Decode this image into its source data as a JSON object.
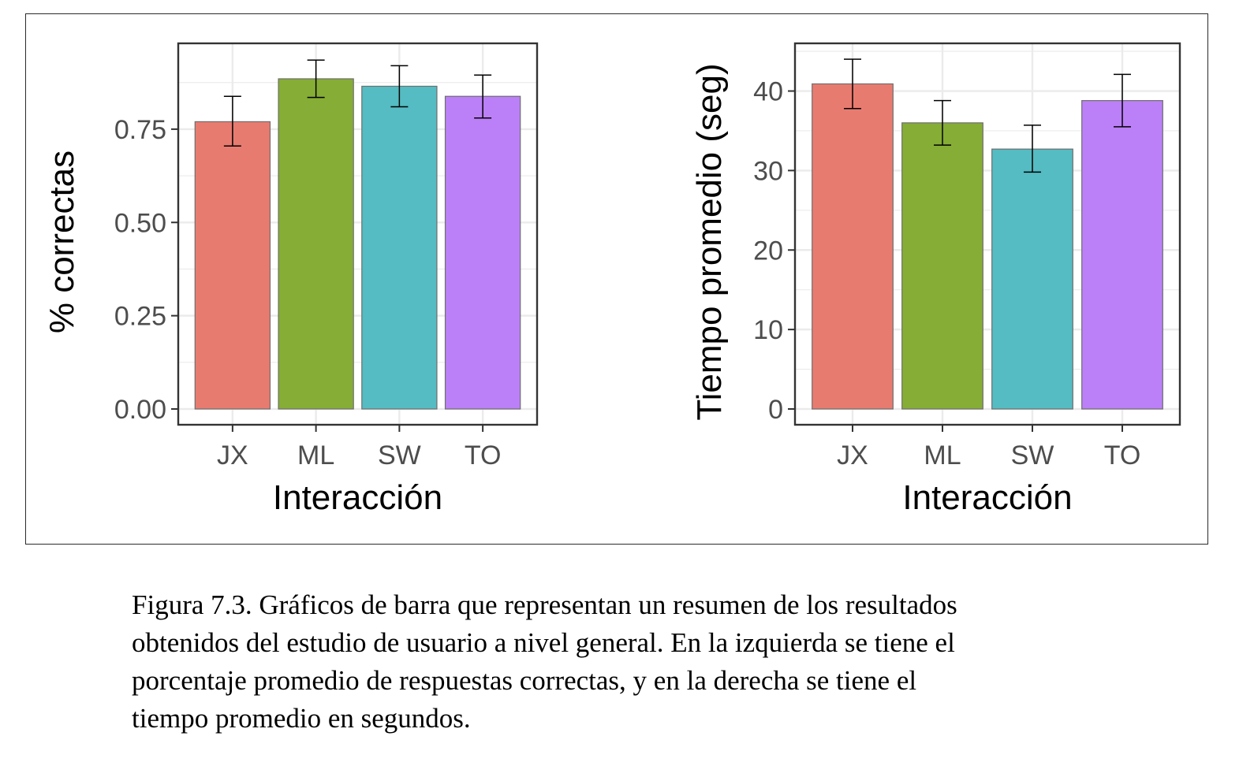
{
  "chart_data": [
    {
      "type": "bar",
      "categories": [
        "JX",
        "ML",
        "SW",
        "TO"
      ],
      "values": [
        0.77,
        0.885,
        0.865,
        0.838
      ],
      "error_bars": [
        [
          0.705,
          0.838
        ],
        [
          0.835,
          0.935
        ],
        [
          0.81,
          0.92
        ],
        [
          0.78,
          0.895
        ]
      ],
      "colors": [
        "#E87B70",
        "#86AD35",
        "#54BCC2",
        "#BB80F7"
      ],
      "xlabel": "Interacción",
      "ylabel": "% correctas",
      "ylim": [
        0,
        0.98
      ],
      "yticks": [
        0.0,
        0.25,
        0.5,
        0.75
      ],
      "ytick_labels": [
        "0.00",
        "0.25",
        "0.50",
        "0.75"
      ],
      "grid": true,
      "legend": "none"
    },
    {
      "type": "bar",
      "categories": [
        "JX",
        "ML",
        "SW",
        "TO"
      ],
      "values": [
        40.9,
        36.0,
        32.7,
        38.8
      ],
      "error_bars": [
        [
          37.8,
          44.0
        ],
        [
          33.2,
          38.8
        ],
        [
          29.8,
          35.7
        ],
        [
          35.5,
          42.1
        ]
      ],
      "colors": [
        "#E87B70",
        "#86AD35",
        "#54BCC2",
        "#BB80F7"
      ],
      "xlabel": "Interacción",
      "ylabel": "Tiempo promedio (seg)",
      "ylim": [
        0,
        46
      ],
      "yticks": [
        0,
        10,
        20,
        30,
        40
      ],
      "ytick_labels": [
        "0",
        "10",
        "20",
        "30",
        "40"
      ],
      "grid": true,
      "legend": "none"
    }
  ],
  "caption": {
    "line1": "Figura 7.3.  Gráficos de barra que representan un resumen de los resultados",
    "line2": "obtenidos del estudio de usuario a nivel general. En la izquierda se tiene el",
    "line3": "porcentaje promedio de respuestas correctas, y en la derecha se tiene el",
    "line4": "tiempo promedio en segundos."
  }
}
